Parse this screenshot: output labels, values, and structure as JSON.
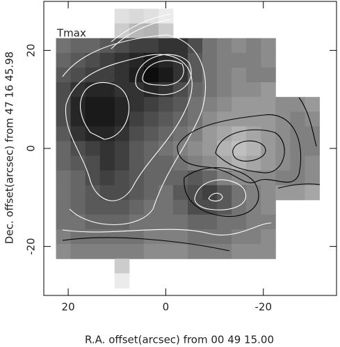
{
  "chart_data": {
    "type": "heatmap",
    "title": "Tmax",
    "xlabel": "R.A. offset(arcsec) from 00 49 15.00",
    "ylabel": "Dec. offset(arcsec) from 47 16 45.98",
    "xlim": [
      25,
      -35
    ],
    "ylim": [
      -30,
      30
    ],
    "xticks": [
      20,
      0,
      -20
    ],
    "yticks": [
      -20,
      0,
      20
    ],
    "x": [
      21,
      18,
      15,
      12,
      9,
      6,
      3,
      0,
      -3,
      -6,
      -9,
      -12,
      -15,
      -18,
      -21,
      -24,
      -27,
      -30
    ],
    "y": [
      27,
      24,
      21,
      18,
      15,
      12,
      9,
      6,
      3,
      0,
      -3,
      -6,
      -9,
      -12,
      -15,
      -18,
      -21,
      -24,
      -27
    ],
    "z": [
      [
        null,
        null,
        null,
        null,
        0.88,
        0.85,
        0.88,
        0.92,
        null,
        null,
        null,
        null,
        null,
        null,
        null,
        null,
        null,
        null
      ],
      [
        null,
        null,
        null,
        null,
        0.8,
        0.72,
        0.7,
        0.8,
        null,
        null,
        null,
        null,
        null,
        null,
        null,
        null,
        null,
        null
      ],
      [
        0.45,
        0.4,
        0.4,
        0.35,
        0.3,
        0.25,
        0.25,
        0.2,
        0.2,
        0.3,
        0.45,
        0.5,
        0.55,
        0.5,
        0.55,
        null,
        null,
        null
      ],
      [
        0.4,
        0.35,
        0.3,
        0.25,
        0.2,
        0.15,
        0.1,
        0.15,
        0.2,
        0.35,
        0.45,
        0.5,
        0.5,
        0.5,
        0.55,
        null,
        null,
        null
      ],
      [
        0.35,
        0.3,
        0.25,
        0.25,
        0.2,
        0.12,
        0.05,
        0.1,
        0.2,
        0.35,
        0.45,
        0.5,
        0.55,
        0.5,
        0.5,
        null,
        null,
        null
      ],
      [
        0.3,
        0.2,
        0.15,
        0.15,
        0.2,
        0.2,
        0.15,
        0.2,
        0.3,
        0.4,
        0.45,
        0.5,
        0.55,
        0.55,
        0.6,
        null,
        null,
        null
      ],
      [
        0.3,
        0.15,
        0.1,
        0.1,
        0.15,
        0.2,
        0.25,
        0.3,
        0.35,
        0.45,
        0.5,
        0.55,
        0.6,
        0.6,
        0.6,
        0.55,
        0.55,
        0.6
      ],
      [
        0.3,
        0.15,
        0.1,
        0.1,
        0.15,
        0.25,
        0.3,
        0.35,
        0.4,
        0.45,
        0.55,
        0.6,
        0.6,
        0.6,
        0.6,
        0.55,
        0.5,
        0.55
      ],
      [
        0.35,
        0.2,
        0.15,
        0.15,
        0.2,
        0.3,
        0.35,
        0.4,
        0.45,
        0.5,
        0.6,
        0.65,
        0.7,
        0.65,
        0.6,
        0.55,
        0.5,
        0.5
      ],
      [
        0.4,
        0.3,
        0.25,
        0.2,
        0.25,
        0.35,
        0.4,
        0.45,
        0.5,
        0.55,
        0.6,
        0.7,
        0.75,
        0.7,
        0.6,
        0.55,
        0.5,
        0.5
      ],
      [
        0.4,
        0.35,
        0.3,
        0.2,
        0.25,
        0.35,
        0.4,
        0.4,
        0.45,
        0.5,
        0.55,
        0.65,
        0.7,
        0.65,
        0.6,
        0.55,
        0.5,
        0.55
      ],
      [
        0.45,
        0.4,
        0.3,
        0.25,
        0.3,
        0.35,
        0.4,
        0.4,
        0.4,
        0.35,
        0.4,
        0.5,
        0.55,
        0.55,
        0.55,
        0.5,
        0.5,
        0.55
      ],
      [
        0.45,
        0.4,
        0.35,
        0.3,
        0.3,
        0.35,
        0.4,
        0.45,
        0.35,
        0.3,
        0.25,
        0.35,
        0.45,
        0.5,
        0.55,
        0.6,
        0.6,
        0.65
      ],
      [
        0.45,
        0.4,
        0.35,
        0.35,
        0.35,
        0.4,
        0.45,
        0.45,
        0.4,
        0.3,
        0.3,
        0.35,
        0.45,
        0.5,
        0.55,
        null,
        null,
        null
      ],
      [
        0.45,
        0.45,
        0.4,
        0.4,
        0.4,
        0.45,
        0.45,
        0.45,
        0.45,
        0.4,
        0.4,
        0.45,
        0.45,
        0.5,
        0.5,
        null,
        null,
        null
      ],
      [
        0.5,
        0.45,
        0.45,
        0.45,
        0.45,
        0.45,
        0.5,
        0.5,
        0.5,
        0.45,
        0.45,
        0.45,
        0.5,
        0.5,
        0.55,
        null,
        null,
        null
      ],
      [
        0.55,
        0.5,
        0.5,
        0.5,
        0.5,
        0.5,
        0.55,
        0.55,
        0.55,
        0.5,
        0.5,
        0.5,
        0.55,
        0.55,
        0.55,
        null,
        null,
        null
      ],
      [
        null,
        null,
        null,
        null,
        0.8,
        null,
        null,
        null,
        null,
        null,
        null,
        null,
        null,
        null,
        null,
        null,
        null,
        null
      ],
      [
        null,
        null,
        null,
        null,
        0.92,
        null,
        null,
        null,
        null,
        null,
        null,
        null,
        null,
        null,
        null,
        null,
        null,
        null
      ]
    ]
  }
}
